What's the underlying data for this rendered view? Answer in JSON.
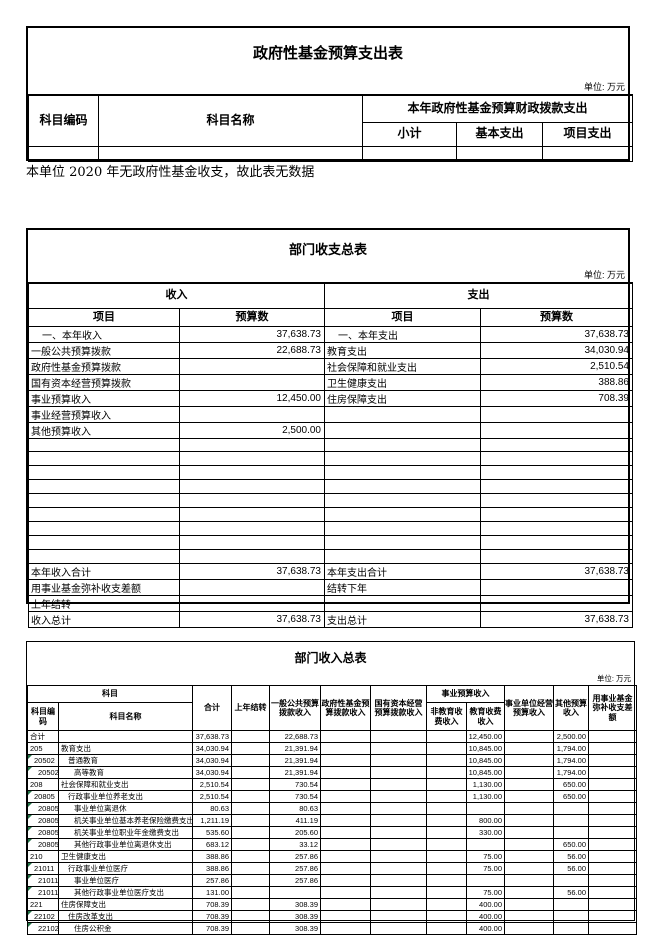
{
  "colors": {
    "border": "#000000",
    "text": "#000000",
    "marker_green": "#217346",
    "background": "#ffffff"
  },
  "fund_expenditure_table": {
    "title": "政府性基金预算支出表",
    "unit_label": "单位: 万元",
    "headers": {
      "code": "科目编码",
      "name": "科目名称",
      "group": "本年政府性基金预算财政拨款支出",
      "subtotal": "小计",
      "basic": "基本支出",
      "project": "项目支出"
    }
  },
  "note": "本单位 2020 年无政府性基金收支，故此表无数据",
  "summary_table": {
    "title": "部门收支总表",
    "unit_label": "单位: 万元",
    "headers": {
      "income": "收入",
      "expense": "支出",
      "item": "项目",
      "budget": "预算数"
    },
    "rows": [
      {
        "in_item": "一、本年收入",
        "in_val": "37,638.73",
        "out_item": "一、本年支出",
        "out_val": "37,638.73",
        "indent": true
      },
      {
        "in_item": "一般公共预算拨款",
        "in_val": "22,688.73",
        "out_item": "教育支出",
        "out_val": "34,030.94"
      },
      {
        "in_item": "政府性基金预算拨款",
        "in_val": "",
        "out_item": "社会保障和就业支出",
        "out_val": "2,510.54"
      },
      {
        "in_item": "国有资本经营预算拨款",
        "in_val": "",
        "out_item": "卫生健康支出",
        "out_val": "388.86"
      },
      {
        "in_item": "事业预算收入",
        "in_val": "12,450.00",
        "out_item": "住房保障支出",
        "out_val": "708.39"
      },
      {
        "in_item": "事业经营预算收入",
        "in_val": "",
        "out_item": "",
        "out_val": ""
      },
      {
        "in_item": "其他预算收入",
        "in_val": "2,500.00",
        "out_item": "",
        "out_val": ""
      },
      {
        "in_item": "",
        "in_val": "",
        "out_item": "",
        "out_val": ""
      },
      {
        "in_item": "",
        "in_val": "",
        "out_item": "",
        "out_val": ""
      },
      {
        "in_item": "",
        "in_val": "",
        "out_item": "",
        "out_val": ""
      },
      {
        "in_item": "",
        "in_val": "",
        "out_item": "",
        "out_val": ""
      },
      {
        "in_item": "",
        "in_val": "",
        "out_item": "",
        "out_val": ""
      },
      {
        "in_item": "",
        "in_val": "",
        "out_item": "",
        "out_val": ""
      },
      {
        "in_item": "",
        "in_val": "",
        "out_item": "",
        "out_val": ""
      },
      {
        "in_item": "",
        "in_val": "",
        "out_item": "",
        "out_val": ""
      },
      {
        "in_item": "",
        "in_val": "",
        "out_item": "",
        "out_val": ""
      },
      {
        "in_item": "本年收入合计",
        "in_val": "37,638.73",
        "out_item": "本年支出合计",
        "out_val": "37,638.73",
        "strong": true
      },
      {
        "in_item": "用事业基金弥补收支差额",
        "in_val": "",
        "out_item": "结转下年",
        "out_val": ""
      },
      {
        "in_item": "上年结转",
        "in_val": "",
        "out_item": "",
        "out_val": ""
      },
      {
        "in_item": "收入总计",
        "in_val": "37,638.73",
        "out_item": "支出总计",
        "out_val": "37,638.73"
      }
    ]
  },
  "income_table": {
    "title": "部门收入总表",
    "unit_label": "单位: 万元",
    "headers": {
      "subject_group": "科目",
      "code": "科目编码",
      "name": "科目名称",
      "total": "合计",
      "carryover": "上年结转",
      "general": "一般公共预算拨款收入",
      "gov_fund": "政府性基金预算拨款收入",
      "state_capital": "国有资本经营预算拨款收入",
      "institution_group": "事业预算收入",
      "non_edu_fee": "非教育收费收入",
      "edu_fee": "教育收费收入",
      "operating": "事业单位经营预算收入",
      "other": "其他预算收入",
      "fund_balance": "用事业基金弥补收支差额"
    },
    "rows": [
      {
        "code": "合计",
        "name": "",
        "total": "37,638.73",
        "general": "22,688.73",
        "edu_fee": "12,450.00",
        "other": "2,500.00",
        "level": 0
      },
      {
        "code": "205",
        "name": "教育支出",
        "total": "34,030.94",
        "general": "21,391.94",
        "edu_fee": "10,845.00",
        "other": "1,794.00",
        "level": 0,
        "group": true
      },
      {
        "code": "20502",
        "name": "普通教育",
        "total": "34,030.94",
        "general": "21,391.94",
        "edu_fee": "10,845.00",
        "other": "1,794.00",
        "level": 1,
        "marker": true
      },
      {
        "code": "2050205",
        "name": "高等教育",
        "total": "34,030.94",
        "general": "21,391.94",
        "edu_fee": "10,845.00",
        "other": "1,794.00",
        "level": 2,
        "marker": true
      },
      {
        "code": "208",
        "name": "社会保障和就业支出",
        "total": "2,510.54",
        "general": "730.54",
        "edu_fee": "1,130.00",
        "other": "650.00",
        "level": 0,
        "group": true
      },
      {
        "code": "20805",
        "name": "行政事业单位养老支出",
        "total": "2,510.54",
        "general": "730.54",
        "edu_fee": "1,130.00",
        "other": "650.00",
        "level": 1,
        "marker": true
      },
      {
        "code": "2080502",
        "name": "事业单位离退休",
        "total": "80.63",
        "general": "80.63",
        "level": 2,
        "marker": true
      },
      {
        "code": "2080505",
        "name": "机关事业单位基本养老保险缴费支出",
        "total": "1,211.19",
        "general": "411.19",
        "edu_fee": "800.00",
        "level": 2,
        "marker": true
      },
      {
        "code": "2080506",
        "name": "机关事业单位职业年金缴费支出",
        "total": "535.60",
        "general": "205.60",
        "edu_fee": "330.00",
        "level": 2,
        "marker": true
      },
      {
        "code": "2080599",
        "name": "其他行政事业单位离退休支出",
        "total": "683.12",
        "general": "33.12",
        "other": "650.00",
        "level": 2,
        "marker": true
      },
      {
        "code": "210",
        "name": "卫生健康支出",
        "total": "388.86",
        "general": "257.86",
        "edu_fee": "75.00",
        "other": "56.00",
        "level": 0,
        "group": true
      },
      {
        "code": "21011",
        "name": "行政事业单位医疗",
        "total": "388.86",
        "general": "257.86",
        "edu_fee": "75.00",
        "other": "56.00",
        "level": 1,
        "marker": true
      },
      {
        "code": "2101102",
        "name": "事业单位医疗",
        "total": "257.86",
        "general": "257.86",
        "level": 2,
        "marker": true
      },
      {
        "code": "2101199",
        "name": "其他行政事业单位医疗支出",
        "total": "131.00",
        "edu_fee": "75.00",
        "other": "56.00",
        "level": 2,
        "marker": true
      },
      {
        "code": "221",
        "name": "住房保障支出",
        "total": "708.39",
        "general": "308.39",
        "edu_fee": "400.00",
        "level": 0,
        "group": true
      },
      {
        "code": "22102",
        "name": "住房改革支出",
        "total": "708.39",
        "general": "308.39",
        "edu_fee": "400.00",
        "level": 1,
        "marker": true
      },
      {
        "code": "2210201",
        "name": "住房公积金",
        "total": "708.39",
        "general": "308.39",
        "edu_fee": "400.00",
        "level": 2,
        "marker": true
      }
    ]
  }
}
